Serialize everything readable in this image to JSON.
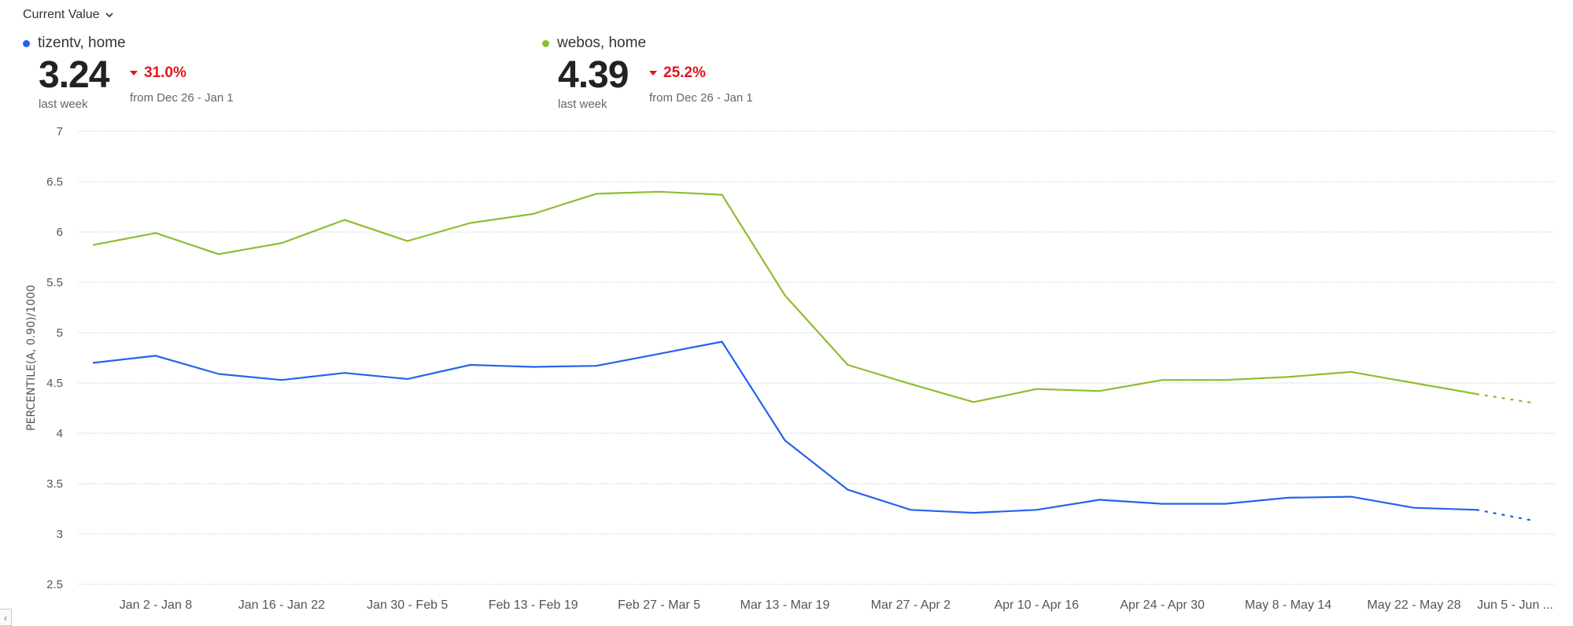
{
  "header": {
    "selector_label": "Current Value"
  },
  "kpis": [
    {
      "legend": "tizentv, home",
      "color": "#2563eb",
      "value": "3.24",
      "value_caption": "last week",
      "change": "31.0%",
      "change_direction": "down",
      "change_caption": "from Dec 26 - Jan 1"
    },
    {
      "legend": "webos, home",
      "color": "#8fbd2f",
      "value": "4.39",
      "value_caption": "last week",
      "change": "25.2%",
      "change_direction": "down",
      "change_caption": "from Dec 26 - Jan 1"
    }
  ],
  "colors": {
    "negative": "#e3151b",
    "grid": "#d6dbe4",
    "axis_text": "#555555"
  },
  "chart_data": {
    "type": "line",
    "ylabel": "PERCENTILE(A, 0.90)/1000",
    "ylim": [
      2.5,
      7
    ],
    "yticks": [
      "2.5",
      "3",
      "3.5",
      "4",
      "4.5",
      "5",
      "5.5",
      "6",
      "6.5",
      "7"
    ],
    "grid": true,
    "x_tick_labels": [
      "Jan 2 - Jan 8",
      "Jan 16 - Jan 22",
      "Jan 30 - Feb 5",
      "Feb 13 - Feb 19",
      "Feb 27 - Mar 5",
      "Mar 13 - Mar 19",
      "Mar 27 - Apr 2",
      "Apr 10 - Apr 16",
      "Apr 24 - Apr 30",
      "May 8 - May 14",
      "May 22 - May 28",
      "Jun 5 - Jun ..."
    ],
    "series": [
      {
        "name": "tizentv, home",
        "color": "#2563eb",
        "values": [
          4.7,
          4.77,
          4.59,
          4.53,
          4.6,
          4.54,
          4.68,
          4.66,
          4.67,
          4.79,
          4.91,
          3.93,
          3.44,
          3.24,
          3.21,
          3.24,
          3.34,
          3.3,
          3.3,
          3.36,
          3.37,
          3.26,
          3.24
        ],
        "projected": 3.13
      },
      {
        "name": "webos, home",
        "color": "#8fbd2f",
        "values": [
          5.87,
          5.99,
          5.78,
          5.89,
          6.12,
          5.91,
          6.09,
          6.18,
          6.38,
          6.4,
          6.37,
          5.37,
          4.68,
          4.49,
          4.31,
          4.44,
          4.42,
          4.53,
          4.53,
          4.56,
          4.61,
          4.5,
          4.39
        ],
        "projected": 4.3
      }
    ]
  }
}
